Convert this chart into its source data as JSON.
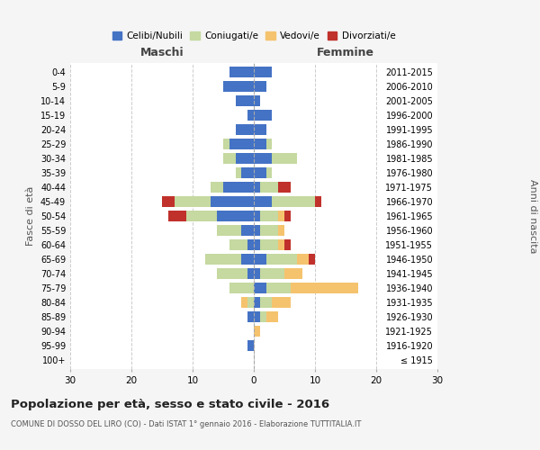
{
  "age_groups": [
    "100+",
    "95-99",
    "90-94",
    "85-89",
    "80-84",
    "75-79",
    "70-74",
    "65-69",
    "60-64",
    "55-59",
    "50-54",
    "45-49",
    "40-44",
    "35-39",
    "30-34",
    "25-29",
    "20-24",
    "15-19",
    "10-14",
    "5-9",
    "0-4"
  ],
  "birth_years": [
    "≤ 1915",
    "1916-1920",
    "1921-1925",
    "1926-1930",
    "1931-1935",
    "1936-1940",
    "1941-1945",
    "1946-1950",
    "1951-1955",
    "1956-1960",
    "1961-1965",
    "1966-1970",
    "1971-1975",
    "1976-1980",
    "1981-1985",
    "1986-1990",
    "1991-1995",
    "1996-2000",
    "2001-2005",
    "2006-2010",
    "2011-2015"
  ],
  "maschi": {
    "celibi": [
      0,
      1,
      0,
      1,
      0,
      0,
      1,
      2,
      1,
      2,
      6,
      7,
      5,
      2,
      3,
      4,
      3,
      1,
      3,
      5,
      4
    ],
    "coniugati": [
      0,
      0,
      0,
      0,
      1,
      4,
      5,
      6,
      3,
      4,
      5,
      6,
      2,
      1,
      2,
      1,
      0,
      0,
      0,
      0,
      0
    ],
    "vedovi": [
      0,
      0,
      0,
      0,
      1,
      0,
      0,
      0,
      0,
      0,
      0,
      0,
      0,
      0,
      0,
      0,
      0,
      0,
      0,
      0,
      0
    ],
    "divorziati": [
      0,
      0,
      0,
      0,
      0,
      0,
      0,
      0,
      0,
      0,
      3,
      2,
      0,
      0,
      0,
      0,
      0,
      0,
      0,
      0,
      0
    ]
  },
  "femmine": {
    "nubili": [
      0,
      0,
      0,
      1,
      1,
      2,
      1,
      2,
      1,
      1,
      1,
      3,
      1,
      2,
      3,
      2,
      2,
      3,
      1,
      2,
      3
    ],
    "coniugate": [
      0,
      0,
      0,
      1,
      2,
      4,
      4,
      5,
      3,
      3,
      3,
      7,
      3,
      1,
      4,
      1,
      0,
      0,
      0,
      0,
      0
    ],
    "vedove": [
      0,
      0,
      1,
      2,
      3,
      11,
      3,
      2,
      1,
      1,
      1,
      0,
      0,
      0,
      0,
      0,
      0,
      0,
      0,
      0,
      0
    ],
    "divorziate": [
      0,
      0,
      0,
      0,
      0,
      0,
      0,
      1,
      1,
      0,
      1,
      1,
      2,
      0,
      0,
      0,
      0,
      0,
      0,
      0,
      0
    ]
  },
  "colors": {
    "celibi": "#4472C4",
    "coniugati": "#C5D9A0",
    "vedovi": "#F5C36E",
    "divorziati": "#C0312B"
  },
  "xlim": 30,
  "title": "Popolazione per età, sesso e stato civile - 2016",
  "subtitle": "COMUNE DI DOSSO DEL LIRO (CO) - Dati ISTAT 1° gennaio 2016 - Elaborazione TUTTITALIA.IT",
  "ylabel_left": "Fasce di età",
  "ylabel_right": "Anni di nascita",
  "xlabel_maschi": "Maschi",
  "xlabel_femmine": "Femmine",
  "legend_labels": [
    "Celibi/Nubili",
    "Coniugati/e",
    "Vedovi/e",
    "Divorziati/e"
  ],
  "bg_color": "#f5f5f5",
  "plot_bg": "#ffffff"
}
